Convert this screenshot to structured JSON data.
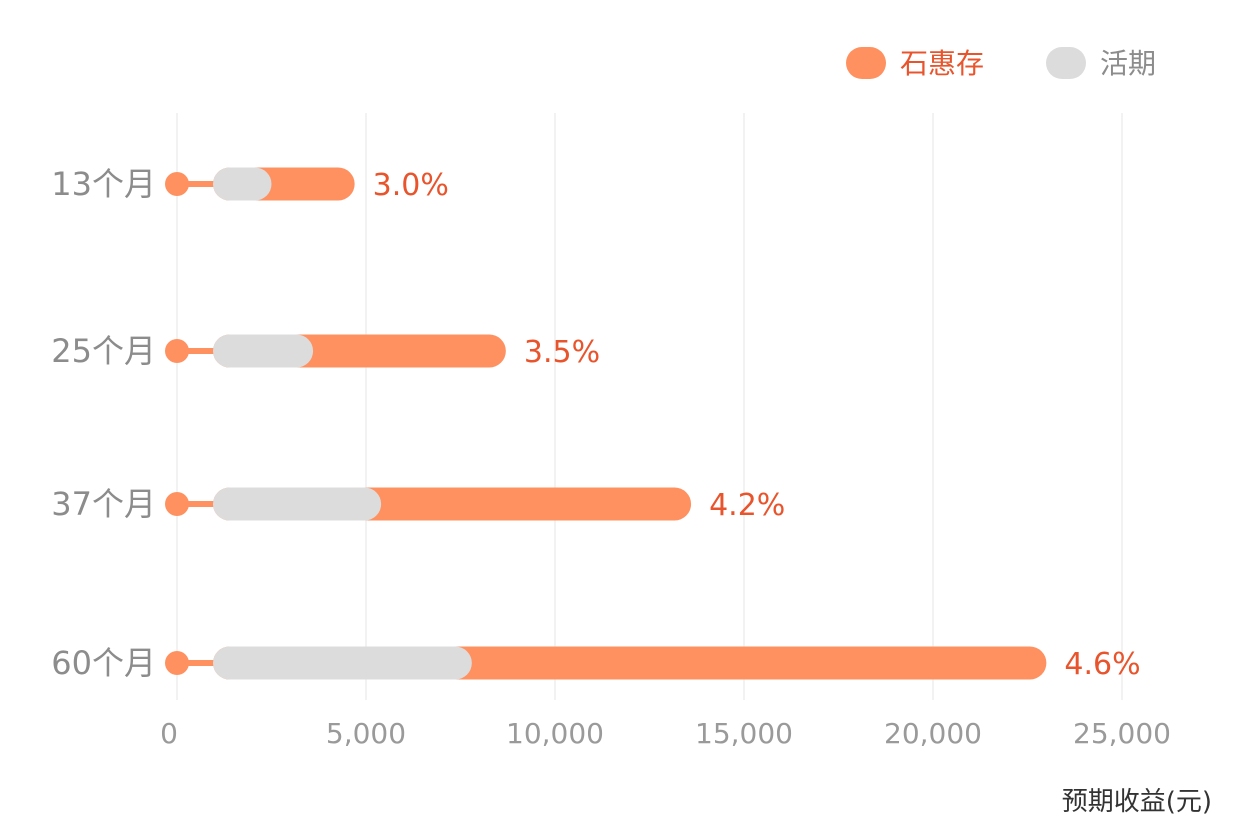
{
  "chart_data": {
    "type": "bar",
    "orientation": "horizontal",
    "categories": [
      "13个月",
      "25个月",
      "37个月",
      "60个月"
    ],
    "series": [
      {
        "name": "石惠存",
        "values": [
          4700,
          8700,
          13600,
          23000
        ],
        "color": "#ff9160"
      },
      {
        "name": "活期",
        "values": [
          2500,
          3600,
          5400,
          7800
        ],
        "color": "#dcdcdc"
      }
    ],
    "data_labels": [
      "3.0%",
      "3.5%",
      "4.2%",
      "4.6%"
    ],
    "xlabel": "预期收益(元)",
    "ylabel": "",
    "xlim": [
      0,
      25000
    ],
    "x_ticks": [
      0,
      5000,
      10000,
      15000,
      20000,
      25000
    ],
    "x_tick_labels": [
      "0",
      "5,000",
      "10,000",
      "15,000",
      "20,000",
      "25,000"
    ],
    "grid": true,
    "legend_position": "top-right",
    "label_color": "#e8552d"
  }
}
